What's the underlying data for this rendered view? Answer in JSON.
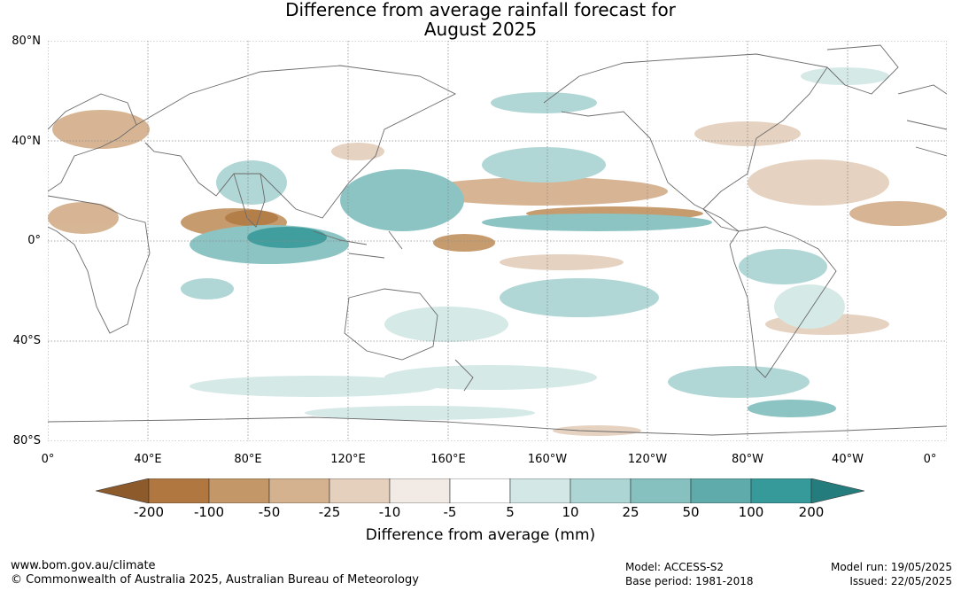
{
  "title": {
    "line1": "Difference from average rainfall forecast for",
    "line2": "August 2025"
  },
  "map": {
    "lat_labels": [
      "80°N",
      "40°N",
      "0°",
      "40°S",
      "80°S"
    ],
    "lon_labels": [
      "0°",
      "40°E",
      "80°E",
      "120°E",
      "160°E",
      "160°W",
      "120°W",
      "80°W",
      "40°W",
      "0°"
    ]
  },
  "colorbar": {
    "ticks": [
      "-200",
      "-100",
      "-50",
      "-25",
      "-10",
      "-5",
      "5",
      "10",
      "25",
      "50",
      "100",
      "200"
    ],
    "colors": [
      "#8c5a2b",
      "#b07840",
      "#c49768",
      "#d5b28f",
      "#e5d0bd",
      "#f2ebe5",
      "#ffffff",
      "#d3e8e6",
      "#acd5d3",
      "#86c1c0",
      "#5fabab",
      "#36999a",
      "#257c7c"
    ],
    "label": "Difference from average (mm)"
  },
  "footer": {
    "website": "www.bom.gov.au/climate",
    "copyright": "© Commonwealth of Australia 2025, Australian Bureau of Meteorology",
    "model": "Model: ACCESS-S2",
    "base_period": "Base period: 1981-2018",
    "model_run": "Model run: 19/05/2025",
    "issued": "Issued: 22/05/2025"
  }
}
